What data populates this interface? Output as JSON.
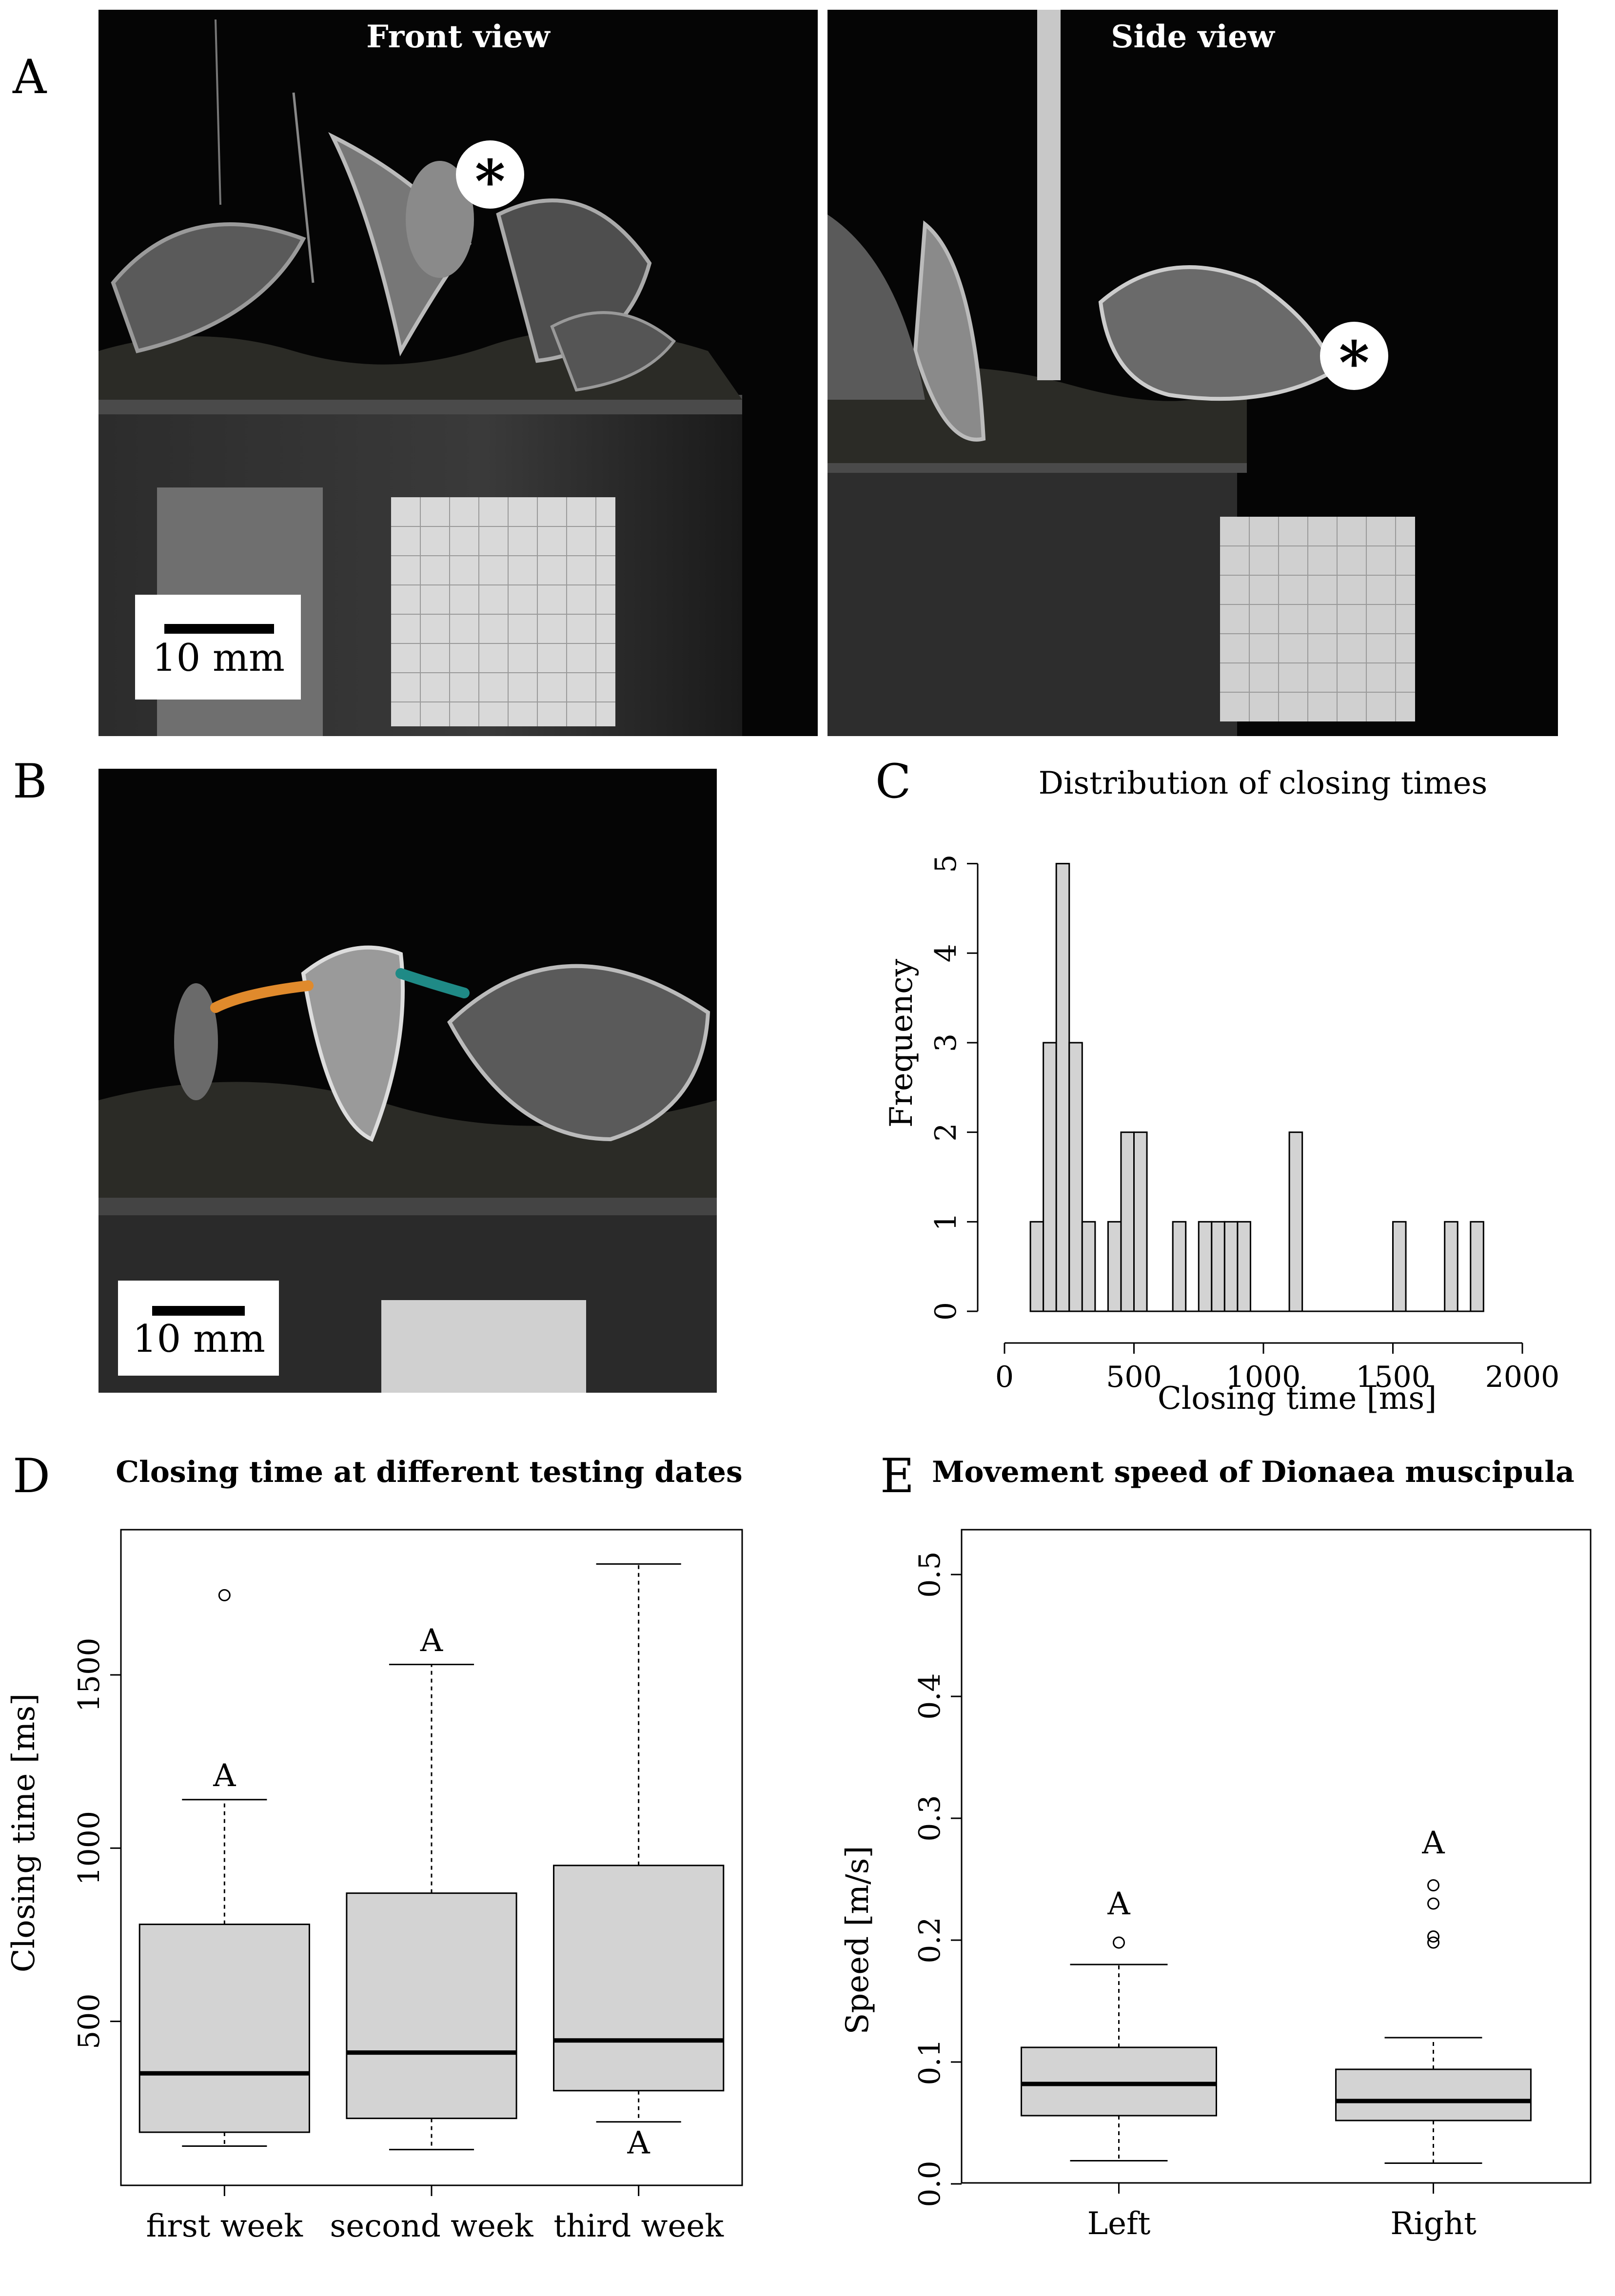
{
  "panels": {
    "A": {
      "letter": "A",
      "front_title": "Front view",
      "side_title": "Side view",
      "scale_label": "10 mm",
      "asterisk": "*"
    },
    "B": {
      "letter": "B",
      "scale_label": "10 mm",
      "trace_colors": [
        "#e08a2c",
        "#1f8a86"
      ]
    },
    "C": {
      "letter": "C"
    },
    "D": {
      "letter": "D"
    },
    "E": {
      "letter": "E"
    }
  },
  "chart_data": [
    {
      "id": "C",
      "type": "bar",
      "title": "Distribution of closing times",
      "xlabel": "Closing time [ms]",
      "ylabel": "Frequency",
      "xlim": [
        0,
        2000
      ],
      "ylim": [
        0,
        5
      ],
      "xticks": [
        "0",
        "500",
        "1000",
        "1500",
        "2000"
      ],
      "yticks": [
        "0",
        "1",
        "2",
        "3",
        "4",
        "5"
      ],
      "bin_width": 50,
      "bins": [
        {
          "start": 100,
          "count": 1
        },
        {
          "start": 150,
          "count": 3
        },
        {
          "start": 200,
          "count": 5
        },
        {
          "start": 250,
          "count": 3
        },
        {
          "start": 300,
          "count": 1
        },
        {
          "start": 350,
          "count": 0
        },
        {
          "start": 400,
          "count": 1
        },
        {
          "start": 450,
          "count": 2
        },
        {
          "start": 500,
          "count": 2
        },
        {
          "start": 550,
          "count": 0
        },
        {
          "start": 600,
          "count": 0
        },
        {
          "start": 650,
          "count": 1
        },
        {
          "start": 700,
          "count": 0
        },
        {
          "start": 750,
          "count": 1
        },
        {
          "start": 800,
          "count": 1
        },
        {
          "start": 850,
          "count": 1
        },
        {
          "start": 900,
          "count": 1
        },
        {
          "start": 950,
          "count": 0
        },
        {
          "start": 1000,
          "count": 0
        },
        {
          "start": 1050,
          "count": 0
        },
        {
          "start": 1100,
          "count": 2
        },
        {
          "start": 1150,
          "count": 0
        },
        {
          "start": 1200,
          "count": 0
        },
        {
          "start": 1250,
          "count": 0
        },
        {
          "start": 1300,
          "count": 0
        },
        {
          "start": 1350,
          "count": 0
        },
        {
          "start": 1400,
          "count": 0
        },
        {
          "start": 1450,
          "count": 0
        },
        {
          "start": 1500,
          "count": 1
        },
        {
          "start": 1550,
          "count": 0
        },
        {
          "start": 1600,
          "count": 0
        },
        {
          "start": 1650,
          "count": 0
        },
        {
          "start": 1700,
          "count": 1
        },
        {
          "start": 1750,
          "count": 0
        },
        {
          "start": 1800,
          "count": 1
        }
      ],
      "bar_color": "#d3d3d3"
    },
    {
      "id": "D",
      "type": "box",
      "title": "Closing time at different testing dates",
      "xlabel": "",
      "ylabel": "Closing time [ms]",
      "ylim": [
        90,
        1860
      ],
      "yticks": [
        "500",
        "1000",
        "1500"
      ],
      "box_color": "#d3d3d3",
      "groups": [
        {
          "label": "first week",
          "whisker_low": 140,
          "q1": 180,
          "median": 350,
          "q3": 780,
          "whisker_high": 1140,
          "outliers": [
            1730
          ],
          "sig": "A",
          "sig_value": 1210
        },
        {
          "label": "second week",
          "whisker_low": 130,
          "q1": 220,
          "median": 410,
          "q3": 870,
          "whisker_high": 1530,
          "outliers": [],
          "sig": "A",
          "sig_value": 1600
        },
        {
          "label": "third week",
          "whisker_low": 210,
          "q1": 300,
          "median": 445,
          "q3": 950,
          "whisker_high": 1820,
          "outliers": [],
          "sig": "A",
          "sig_value": 150
        }
      ]
    },
    {
      "id": "E",
      "type": "box",
      "title": "Movement speed of Dionaea muscipula",
      "xlabel": "",
      "ylabel": "Speed [m/s]",
      "ylim": [
        0,
        0.52
      ],
      "yticks": [
        "0.0",
        "0.1",
        "0.2",
        "0.3",
        "0.4",
        "0.5"
      ],
      "box_color": "#d3d3d3",
      "groups": [
        {
          "label": "Left",
          "whisker_low": 0.019,
          "q1": 0.056,
          "median": 0.082,
          "q3": 0.112,
          "whisker_high": 0.18,
          "outliers": [
            0.198
          ],
          "sig": "A",
          "sig_value": 0.23
        },
        {
          "label": "Right",
          "whisker_low": 0.017,
          "q1": 0.052,
          "median": 0.068,
          "q3": 0.094,
          "whisker_high": 0.12,
          "outliers": [
            0.198,
            0.203,
            0.23,
            0.245
          ],
          "sig": "A",
          "sig_value": 0.28
        }
      ]
    }
  ]
}
